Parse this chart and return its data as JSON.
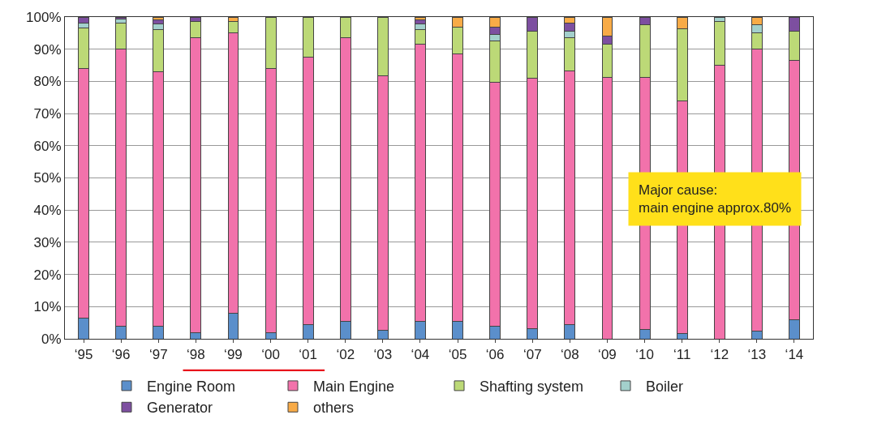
{
  "chart_data": {
    "type": "bar",
    "stacked": true,
    "categories": [
      "‘95",
      "‘96",
      "‘97",
      "‘98",
      "‘99",
      "‘00",
      "‘01",
      "‘02",
      "‘03",
      "‘04",
      "‘05",
      "‘06",
      "‘07",
      "‘08",
      "‘09",
      "‘10",
      "‘11",
      "‘12",
      "‘13",
      "‘14"
    ],
    "series": [
      {
        "name": "Engine Room",
        "color": "#5b8fcb",
        "values": [
          6.5,
          4,
          4,
          2,
          8,
          2,
          4.3,
          5.5,
          2.7,
          5.5,
          5.5,
          4,
          3.2,
          4.5,
          null,
          3,
          1.6,
          null,
          2.5,
          6
        ]
      },
      {
        "name": "Main Engine",
        "color": "#f272ab",
        "values": [
          77.5,
          86,
          79,
          91.5,
          87.2,
          82,
          83.2,
          88,
          79.1,
          86,
          83,
          75.8,
          77.8,
          78.7,
          81.2,
          78.2,
          72.4,
          85,
          87.5,
          80.5
        ]
      },
      {
        "name": "Shafting system",
        "color": "#bcd977",
        "values": [
          12.5,
          8,
          13,
          5,
          3.3,
          16,
          12.5,
          6.5,
          18.2,
          4.5,
          8.3,
          12.7,
          14.5,
          10.3,
          10.3,
          16.3,
          22.3,
          13.5,
          5,
          9
        ]
      },
      {
        "name": "Boiler",
        "color": "#a3d0cc",
        "values": [
          1.5,
          1.3,
          1.8,
          null,
          null,
          null,
          null,
          null,
          null,
          1.8,
          null,
          2,
          null,
          2,
          null,
          null,
          null,
          1.5,
          2.5,
          null
        ]
      },
      {
        "name": "Generator",
        "color": "#7d4fa0",
        "values": [
          2,
          0.7,
          1.4,
          1.5,
          null,
          null,
          null,
          null,
          null,
          1.4,
          null,
          2.3,
          4.5,
          2.5,
          2.5,
          2.5,
          null,
          null,
          null,
          4.5
        ]
      },
      {
        "name": "others",
        "color": "#f8ab47",
        "values": [
          null,
          null,
          0.8,
          null,
          1.5,
          null,
          null,
          null,
          null,
          0.8,
          3.2,
          3.2,
          null,
          2,
          6,
          null,
          3.7,
          null,
          2.5,
          null
        ]
      }
    ],
    "ylim": [
      0,
      100
    ],
    "yticks": [
      {
        "value": 0,
        "label": "0%"
      },
      {
        "value": 10,
        "label": "10%"
      },
      {
        "value": 20,
        "label": "20%"
      },
      {
        "value": 30,
        "label": "30%"
      },
      {
        "value": 40,
        "label": "40%"
      },
      {
        "value": 50,
        "label": "50%"
      },
      {
        "value": 60,
        "label": "60%"
      },
      {
        "value": 70,
        "label": "70%"
      },
      {
        "value": 80,
        "label": "80%"
      },
      {
        "value": 90,
        "label": "90%"
      },
      {
        "value": 100,
        "label": "100%"
      }
    ],
    "grid": "y",
    "legend": "bottom",
    "annotations": [
      "Major cause:\nmain engine approx.80%"
    ]
  }
}
